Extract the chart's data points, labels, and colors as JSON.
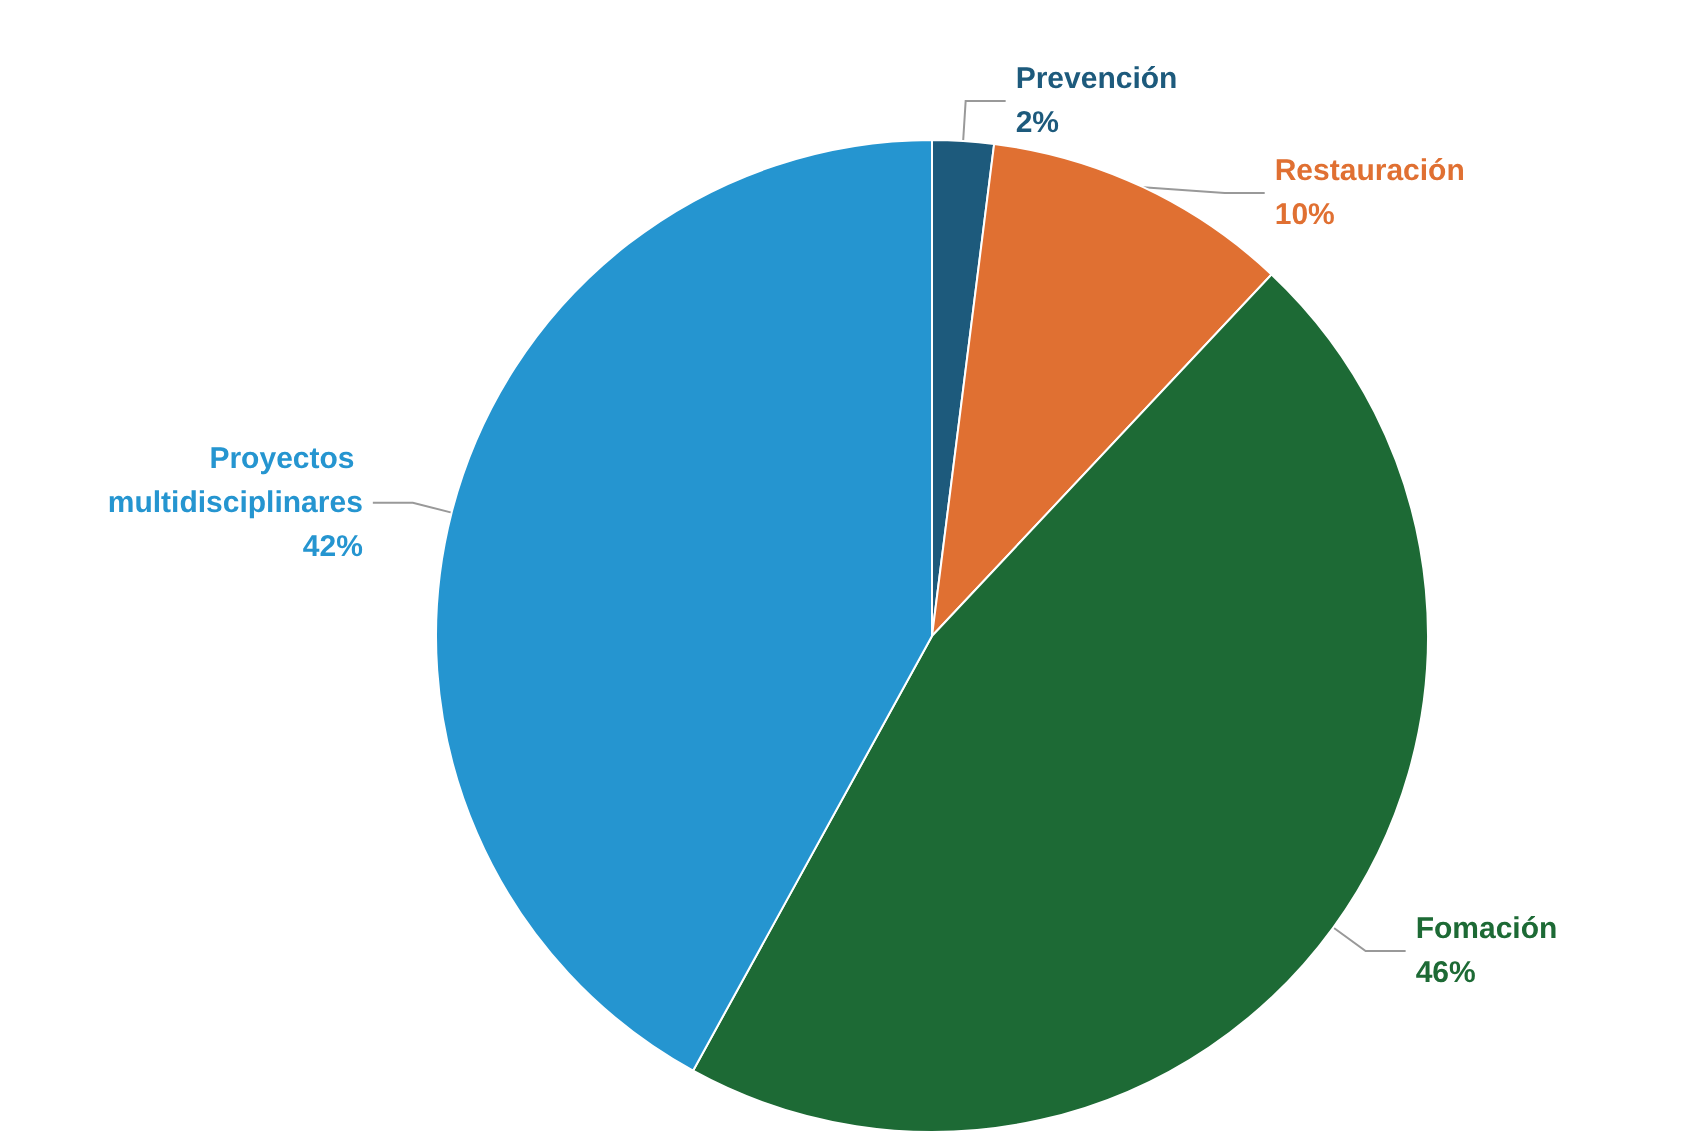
{
  "chart_data": {
    "type": "pie",
    "categories": [
      "Prevención",
      "Restauración",
      "Fomación",
      "Proyectos multidisciplinares"
    ],
    "values": [
      2,
      10,
      46,
      42
    ],
    "value_labels": [
      "2%",
      "10%",
      "46%",
      "42%"
    ],
    "colors": [
      "#1d5a7c",
      "#e07032",
      "#1d6a35",
      "#2595d0"
    ],
    "legend": false
  }
}
